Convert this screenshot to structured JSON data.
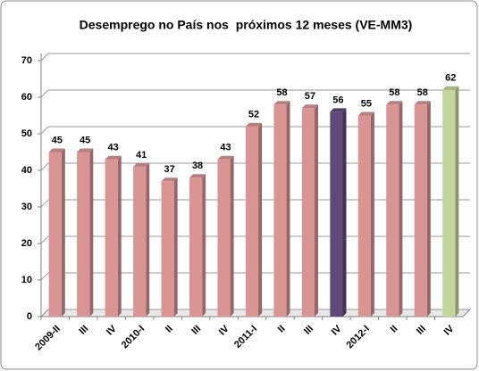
{
  "chart_data": {
    "type": "bar",
    "title": "Desemprego no País nos  próximos 12 meses (VE-MM3)",
    "categories": [
      "2009-II",
      "III",
      "IV",
      "2010-I",
      "II",
      "III",
      "IV",
      "2011-I",
      "II",
      "III",
      "IV",
      "2012-I",
      "II",
      "III",
      "IV"
    ],
    "values": [
      45,
      45,
      43,
      41,
      37,
      38,
      43,
      52,
      58,
      57,
      56,
      55,
      58,
      58,
      62
    ],
    "colors": [
      "#d99594",
      "#d99594",
      "#d99594",
      "#d99594",
      "#d99594",
      "#d99594",
      "#d99594",
      "#d99594",
      "#d99594",
      "#d99594",
      "#5f497a",
      "#d99594",
      "#d99594",
      "#d99594",
      "#c3d69b"
    ],
    "ylim": [
      0,
      70
    ],
    "yticks": [
      0,
      10,
      20,
      30,
      40,
      50,
      60,
      70
    ],
    "grid": true
  }
}
